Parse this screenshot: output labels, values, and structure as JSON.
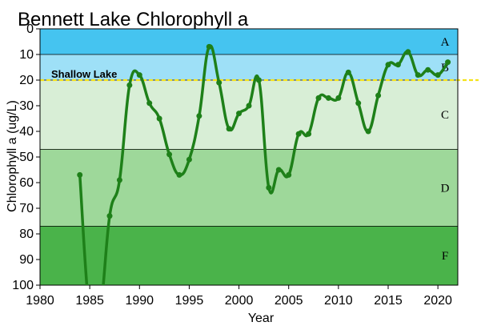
{
  "chart_data": {
    "type": "line",
    "title": "Bennett Lake Chlorophyll a",
    "xlabel": "Year",
    "ylabel": "Chlorophyll a (ug/L)",
    "xlim": [
      1980,
      2022
    ],
    "ylim": [
      0,
      100
    ],
    "y_inverted": true,
    "x_ticks": [
      1980,
      1985,
      1990,
      1995,
      2000,
      2005,
      2010,
      2015,
      2020
    ],
    "y_ticks": [
      0,
      10,
      20,
      30,
      40,
      50,
      60,
      70,
      80,
      90,
      100
    ],
    "grid": false,
    "line_color": "#1e8019",
    "bands": [
      {
        "label": "A",
        "from": 0,
        "to": 10,
        "color": "#45c4f0"
      },
      {
        "label": "B",
        "from": 10,
        "to": 20,
        "color": "#9ee0f7"
      },
      {
        "label": "C",
        "from": 20,
        "to": 47,
        "color": "#d8eed6"
      },
      {
        "label": "D",
        "from": 47,
        "to": 77,
        "color": "#9ed89a"
      },
      {
        "label": "F",
        "from": 77,
        "to": 100,
        "color": "#4ab34a"
      }
    ],
    "reference_line": {
      "label": "Shallow Lake",
      "y": 20,
      "color": "#f5e31a"
    },
    "series": [
      {
        "x": [
          1984,
          1985,
          1986,
          1987,
          1988,
          1989,
          1990,
          1991,
          1992,
          1993,
          1994,
          1995,
          1996,
          1997,
          1998,
          1999,
          2000,
          2001,
          2002,
          2003,
          2004,
          2005,
          2006,
          2007,
          2008,
          2009,
          2010,
          2011,
          2012,
          2013,
          2014,
          2015,
          2016,
          2017,
          2018,
          2019,
          2020,
          2021
        ],
        "values": [
          57,
          112,
          112,
          73,
          59,
          22,
          18,
          29,
          35,
          49,
          57,
          51,
          34,
          7,
          21,
          39,
          33,
          30,
          20,
          62,
          55,
          57,
          41,
          41,
          27,
          27,
          27,
          17,
          29,
          40,
          26,
          14,
          14,
          9,
          18,
          16,
          18,
          13
        ]
      }
    ]
  }
}
